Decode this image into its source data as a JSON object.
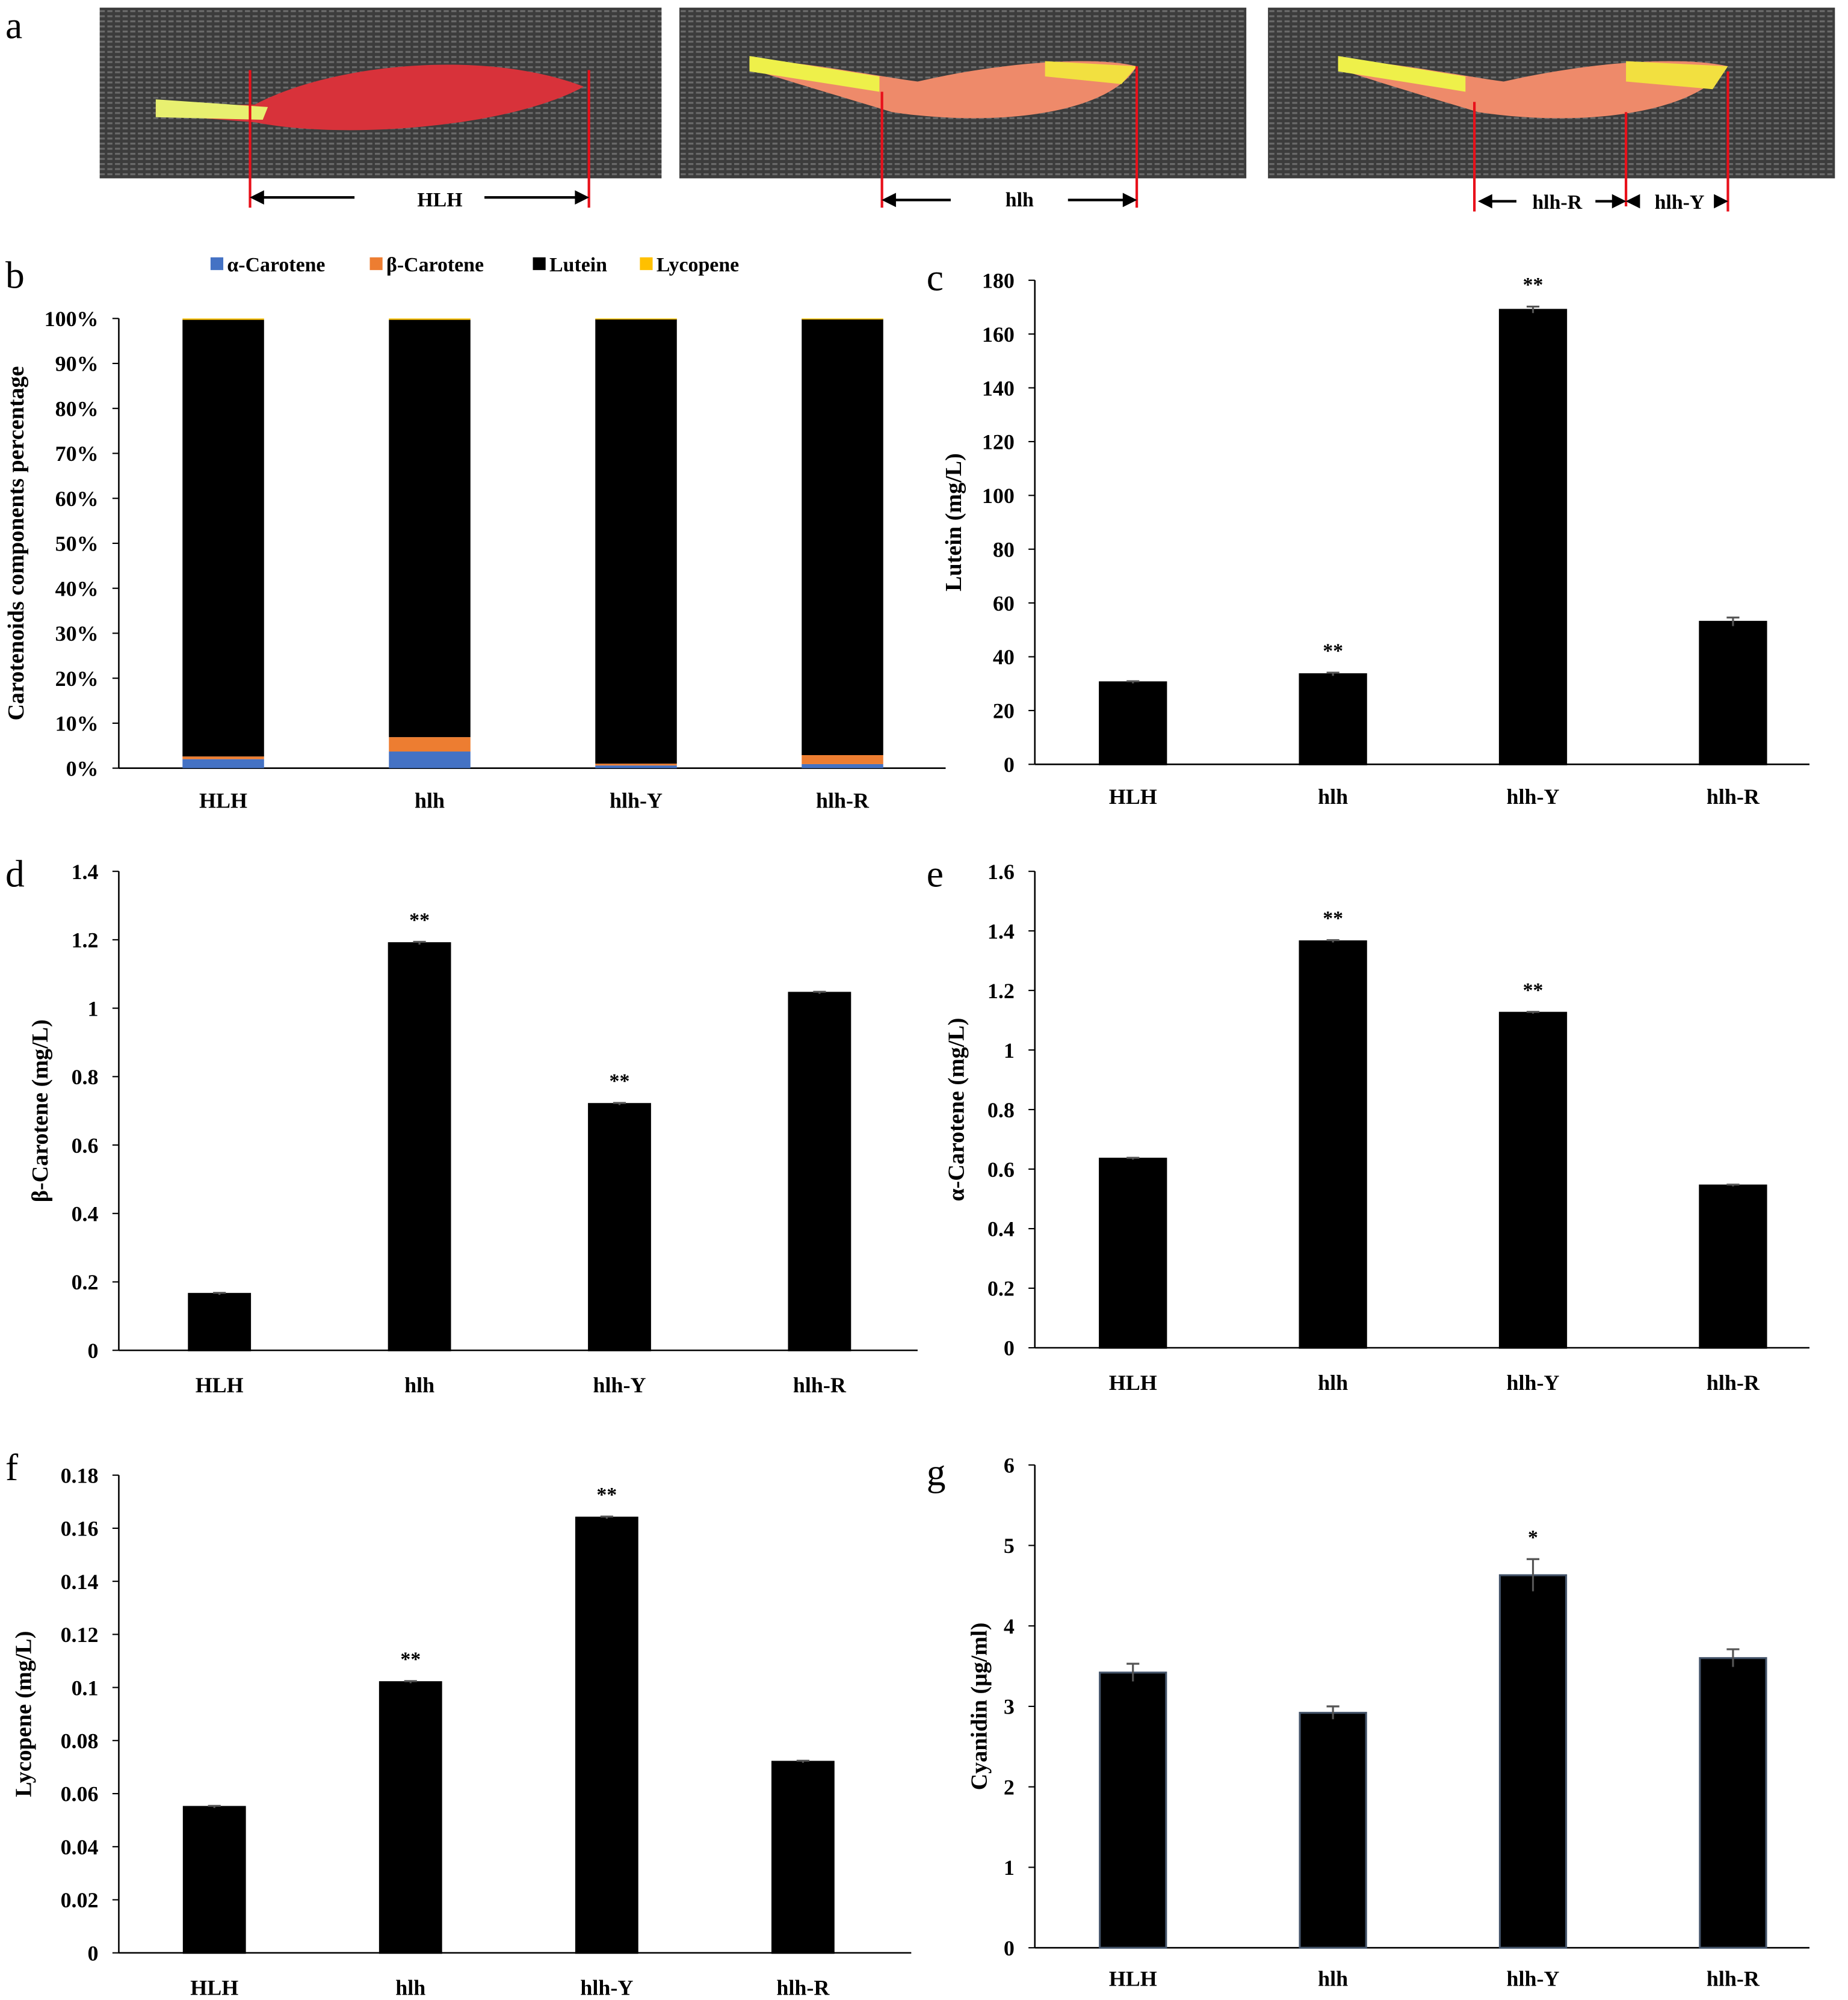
{
  "panel_labels": [
    "a",
    "b",
    "c",
    "d",
    "e",
    "f",
    "g"
  ],
  "panel_a": {
    "photos": [
      {
        "label": "HLH",
        "petal_color": "#d8323a"
      },
      {
        "label": "hlh",
        "petal_color": "#ee8a6a"
      },
      {
        "labels": [
          "hlh-R",
          "hlh-Y"
        ],
        "petal_color": "#ee8a6a"
      }
    ],
    "background_color": "#3a3a3a",
    "marker_color": "#e8101a"
  },
  "chart_data": [
    {
      "id": "b",
      "type": "bar",
      "stacked": true,
      "categories": [
        "HLH",
        "hlh",
        "hlh-Y",
        "hlh-R"
      ],
      "ylabel": "Carotenoids  components percentage",
      "ylim": [
        0,
        100
      ],
      "yticks": [
        "0%",
        "10%",
        "20%",
        "30%",
        "40%",
        "50%",
        "60%",
        "70%",
        "80%",
        "90%",
        "100%"
      ],
      "legend_position": "top",
      "series": [
        {
          "name": "α-Carotene",
          "color": "#4472c4",
          "values": [
            2.0,
            3.7,
            0.6,
            0.9
          ]
        },
        {
          "name": "β-Carotene",
          "color": "#ed7d31",
          "values": [
            0.6,
            3.2,
            0.4,
            2.0
          ]
        },
        {
          "name": "Lutein",
          "color": "#000000",
          "values": [
            97.1,
            92.8,
            98.9,
            97.0
          ]
        },
        {
          "name": "Lycopene",
          "color": "#ffc000",
          "values": [
            0.3,
            0.3,
            0.1,
            0.1
          ]
        }
      ]
    },
    {
      "id": "c",
      "type": "bar",
      "categories": [
        "HLH",
        "hlh",
        "hlh-Y",
        "hlh-R"
      ],
      "ylabel": "Lutein (mg/L)",
      "ylim": [
        0,
        180
      ],
      "yticks": [
        "0",
        "20",
        "40",
        "60",
        "80",
        "100",
        "120",
        "140",
        "160",
        "180"
      ],
      "values": [
        30.5,
        33.5,
        169,
        53
      ],
      "errors": [
        0.4,
        0.6,
        1.2,
        1.6
      ],
      "significance": [
        "",
        "**",
        "**",
        ""
      ]
    },
    {
      "id": "d",
      "type": "bar",
      "categories": [
        "HLH",
        "hlh",
        "hlh-Y",
        "hlh-R"
      ],
      "ylabel": "β-Carotene (mg/L)",
      "ylim": [
        0,
        1.4
      ],
      "yticks": [
        "0",
        "0.2",
        "0.4",
        "0.6",
        "0.8",
        "1",
        "1.2",
        "1.4"
      ],
      "values": [
        0.165,
        1.19,
        0.72,
        1.045
      ],
      "errors": [
        0.003,
        0.004,
        0.003,
        0.003
      ],
      "significance": [
        "",
        "**",
        "**",
        ""
      ]
    },
    {
      "id": "e",
      "type": "bar",
      "categories": [
        "HLH",
        "hlh",
        "hlh-Y",
        "hlh-R"
      ],
      "ylabel": "α-Carotene (mg/L)",
      "ylim": [
        0,
        1.6
      ],
      "yticks": [
        "0",
        "0.2",
        "0.4",
        "0.6",
        "0.8",
        "1",
        "1.2",
        "1.4",
        "1.6"
      ],
      "values": [
        0.635,
        1.365,
        1.125,
        0.545
      ],
      "errors": [
        0.003,
        0.004,
        0.003,
        0.003
      ],
      "significance": [
        "",
        "**",
        "**",
        ""
      ]
    },
    {
      "id": "f",
      "type": "bar",
      "categories": [
        "HLH",
        "hlh",
        "hlh-Y",
        "hlh-R"
      ],
      "ylabel": "Lycopene (mg/L)",
      "ylim": [
        0,
        0.18
      ],
      "yticks": [
        "0",
        "0.02",
        "0.04",
        "0.06",
        "0.08",
        "0.1",
        "0.12",
        "0.14",
        "0.16",
        "0.18"
      ],
      "values": [
        0.055,
        0.102,
        0.164,
        0.072
      ],
      "errors": [
        0.0004,
        0.0004,
        0.0004,
        0.0004
      ],
      "significance": [
        "",
        "**",
        "**",
        ""
      ]
    },
    {
      "id": "g",
      "type": "bar",
      "categories": [
        "HLH",
        "hlh",
        "hlh-Y",
        "hlh-R"
      ],
      "ylabel": "Cyanidin (μg/ml)",
      "ylim": [
        0,
        6
      ],
      "yticks": [
        "0",
        "1",
        "2",
        "3",
        "4",
        "5",
        "6"
      ],
      "values": [
        3.42,
        2.92,
        4.63,
        3.6
      ],
      "errors": [
        0.11,
        0.08,
        0.2,
        0.11
      ],
      "significance": [
        "",
        "",
        "*",
        ""
      ]
    }
  ]
}
